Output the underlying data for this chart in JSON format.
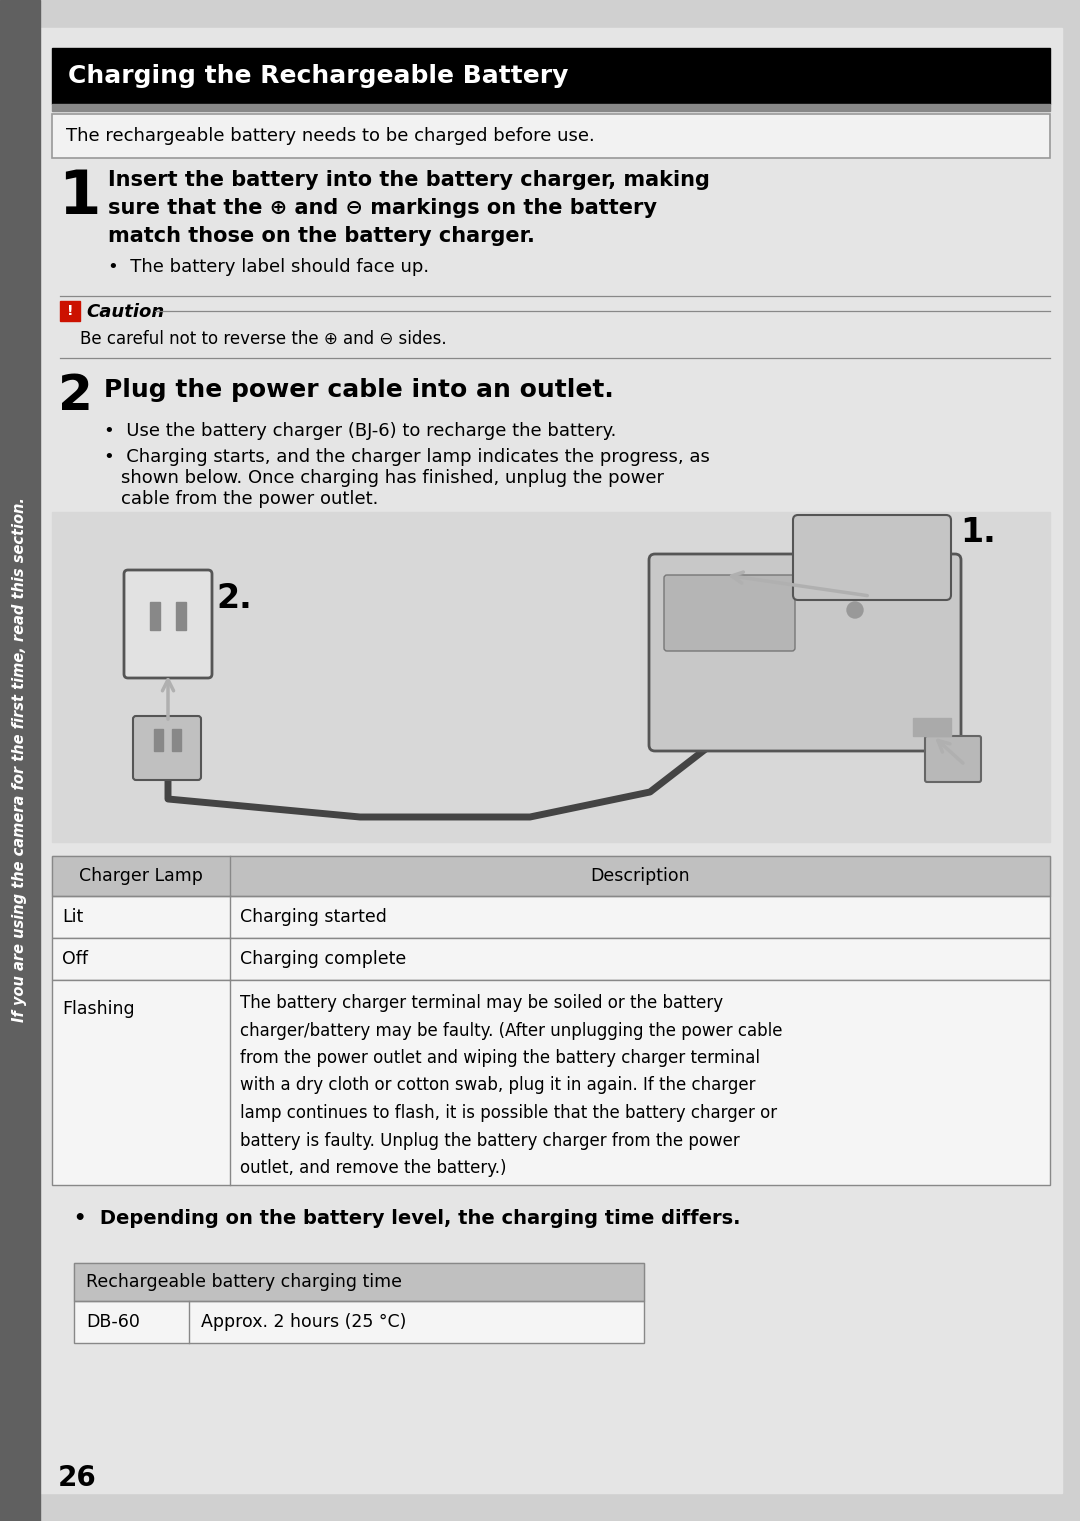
{
  "title": "Charging the Rechargeable Battery",
  "subtitle": "The rechargeable battery needs to be charged before use.",
  "bg_color": "#d0d0d0",
  "title_bg": "#000000",
  "title_color": "#ffffff",
  "step1_text_line1": "Insert the battery into the battery charger, making",
  "step1_text_line2": "sure that the ⊕ and ⊖ markings on the battery",
  "step1_text_line3": "match those on the battery charger.",
  "step1_bullet": "The battery label should face up.",
  "caution_label": "Caution",
  "caution_text": "Be careful not to reverse the ⊕ and ⊖ sides.",
  "step2_text": "Plug the power cable into an outlet.",
  "step2_bullet1": "Use the battery charger (BJ-6) to recharge the battery.",
  "step2_bullet2a": "Charging starts, and the charger lamp indicates the progress, as",
  "step2_bullet2b": "shown below. Once charging has finished, unplug the power",
  "step2_bullet2c": "cable from the power outlet.",
  "table1_col1": "Charger Lamp",
  "table1_col2": "Description",
  "t1r1c1": "Lit",
  "t1r1c2": "Charging started",
  "t1r2c1": "Off",
  "t1r2c2": "Charging complete",
  "t1r3c1": "Flashing",
  "t1r3c2_lines": [
    "The battery charger terminal may be soiled or the battery",
    "charger/battery may be faulty. (After unplugging the power cable",
    "from the power outlet and wiping the battery charger terminal",
    "with a dry cloth or cotton swab, plug it in again. If the charger",
    "lamp continues to flash, it is possible that the battery charger or",
    "battery is faulty. Unplug the battery charger from the power",
    "outlet, and remove the battery.)"
  ],
  "bullet2": "Depending on the battery level, the charging time differs.",
  "table2_header": "Rechargeable battery charging time",
  "t2r1c1": "DB-60",
  "t2r1c2": "Approx. 2 hours (25 °C)",
  "page_number": "26",
  "side_text": "If you are using the camera for the first time, read this section."
}
